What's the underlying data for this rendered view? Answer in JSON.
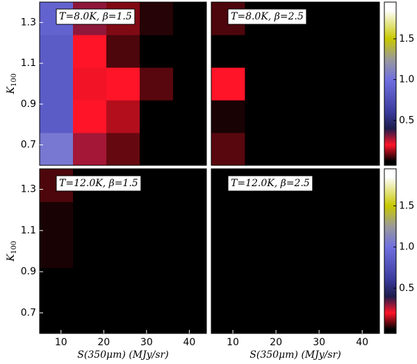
{
  "chart_data": [
    {
      "type": "heatmap",
      "title": "T=8.0K, β=1.5",
      "x_bins": [
        5,
        12.8,
        20.6,
        28.4,
        36.2,
        44
      ],
      "y_bins": [
        0.6,
        0.76,
        0.92,
        1.08,
        1.24,
        1.4
      ],
      "z": [
        [
          1.05,
          0.28,
          0.08,
          0,
          0
        ],
        [
          0.85,
          0.2,
          0.14,
          0,
          0
        ],
        [
          0.85,
          0.19,
          0.2,
          0.07,
          0
        ],
        [
          0.85,
          0.2,
          0.06,
          0,
          0
        ],
        [
          0.9,
          0.3,
          0.1,
          0.03,
          0
        ]
      ],
      "xlim": [
        5,
        44
      ],
      "ylim": [
        0.6,
        1.4
      ],
      "yticks": [
        0.7,
        0.9,
        1.1,
        1.3
      ],
      "ylabel": {
        "main": "K",
        "sub": "100"
      }
    },
    {
      "type": "heatmap",
      "title": "T=8.0K, β=2.5",
      "x_bins": [
        5,
        12.8,
        20.6,
        28.4,
        36.2,
        44
      ],
      "y_bins": [
        0.6,
        0.76,
        0.92,
        1.08,
        1.24,
        1.4
      ],
      "z": [
        [
          0.07,
          0,
          0,
          0,
          0
        ],
        [
          0.02,
          0,
          0,
          0,
          0
        ],
        [
          0.2,
          0,
          0,
          0,
          0
        ],
        [
          0,
          0,
          0,
          0,
          0
        ],
        [
          0.06,
          0,
          0,
          0,
          0
        ]
      ],
      "xlim": [
        5,
        44
      ],
      "ylim": [
        0.6,
        1.4
      ],
      "colorbar": {
        "lim": [
          -0.05,
          1.95
        ],
        "ticks": [
          0.5,
          {
            "value": 1,
            "label": "1.0"
          },
          1.5
        ]
      }
    },
    {
      "type": "heatmap",
      "title": "T=12.0K, β=1.5",
      "x_bins": [
        5,
        12.8,
        20.6,
        28.4,
        36.2,
        44
      ],
      "y_bins": [
        0.6,
        0.76,
        0.92,
        1.08,
        1.24,
        1.4
      ],
      "z": [
        [
          0,
          0,
          0,
          0,
          0
        ],
        [
          0,
          0,
          0,
          0,
          0
        ],
        [
          0.02,
          0,
          0,
          0,
          0
        ],
        [
          0.02,
          0,
          0,
          0,
          0
        ],
        [
          0.06,
          0,
          0,
          0,
          0
        ]
      ],
      "xlim": [
        5,
        44
      ],
      "ylim": [
        0.6,
        1.4
      ],
      "xticks": [
        10,
        20,
        30,
        40
      ],
      "yticks": [
        0.7,
        0.9,
        1.1,
        1.3
      ],
      "xlabel": "S(350μm) (MJy/sr)",
      "ylabel": {
        "main": "K",
        "sub": "100"
      }
    },
    {
      "type": "heatmap",
      "title": "T=12.0K, β=2.5",
      "x_bins": [
        5,
        12.8,
        20.6,
        28.4,
        36.2,
        44
      ],
      "y_bins": [
        0.6,
        0.76,
        0.92,
        1.08,
        1.24,
        1.4
      ],
      "z": [
        [
          0,
          0,
          0,
          0,
          0
        ],
        [
          0,
          0,
          0,
          0,
          0
        ],
        [
          0,
          0,
          0,
          0,
          0
        ],
        [
          0,
          0,
          0,
          0,
          0
        ],
        [
          0,
          0,
          0,
          0,
          0
        ]
      ],
      "xlim": [
        5,
        44
      ],
      "ylim": [
        0.6,
        1.4
      ],
      "xticks": [
        10,
        20,
        30,
        40
      ],
      "xlabel": "S(350μm) (MJy/sr)",
      "colorbar": {
        "lim": [
          -0.05,
          1.95
        ],
        "ticks": [
          0.5,
          {
            "value": 1,
            "label": "1.0"
          },
          1.5
        ]
      }
    }
  ],
  "colormap": [
    [
      0,
      "#000000"
    ],
    [
      0.2,
      "#ff1428"
    ],
    [
      0.4,
      "#1c1c4c"
    ],
    [
      0.6,
      "#3a3a9c"
    ],
    [
      1.0,
      "#7070e0"
    ],
    [
      1.25,
      "#9a9a9a"
    ],
    [
      1.5,
      "#c8c800"
    ],
    [
      1.85,
      "#ffffff"
    ]
  ]
}
